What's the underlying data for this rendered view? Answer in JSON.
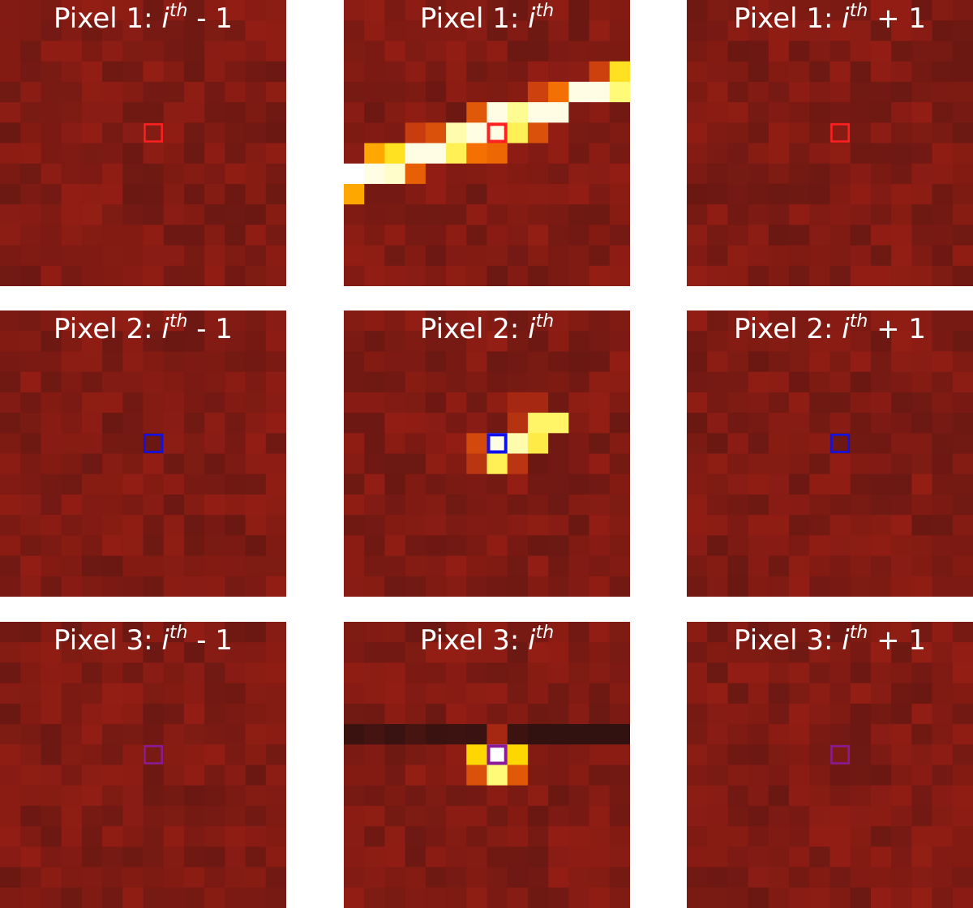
{
  "chart_data": [
    {
      "type": "heatmap",
      "title": "Pixel 1: i^th - 1",
      "title_parts": {
        "prefix": "Pixel 1: ",
        "var": "i",
        "sup": "th",
        "suffix": " - 1"
      },
      "marker_color": "#ff2020",
      "seed": 11,
      "pattern": "quiet",
      "grid": {
        "rows": 14,
        "cols": 14
      },
      "highlight": {
        "row": 6,
        "col": 7
      }
    },
    {
      "type": "heatmap",
      "title": "Pixel 1: i^th",
      "title_parts": {
        "prefix": "Pixel 1: ",
        "var": "i",
        "sup": "th",
        "suffix": ""
      },
      "marker_color": "#ff2020",
      "seed": 12,
      "pattern": "streak",
      "grid": {
        "rows": 14,
        "cols": 14
      },
      "highlight": {
        "row": 6,
        "col": 7
      }
    },
    {
      "type": "heatmap",
      "title": "Pixel 1: i^th + 1",
      "title_parts": {
        "prefix": "Pixel 1: ",
        "var": "i",
        "sup": "th",
        "suffix": " + 1"
      },
      "marker_color": "#ff2020",
      "seed": 13,
      "pattern": "quiet",
      "grid": {
        "rows": 14,
        "cols": 14
      },
      "highlight": {
        "row": 6,
        "col": 7
      }
    },
    {
      "type": "heatmap",
      "title": "Pixel 2: i^th - 1",
      "title_parts": {
        "prefix": "Pixel 2: ",
        "var": "i",
        "sup": "th",
        "suffix": " - 1"
      },
      "marker_color": "#1010ee",
      "seed": 21,
      "pattern": "quiet",
      "grid": {
        "rows": 14,
        "cols": 14
      },
      "highlight": {
        "row": 6,
        "col": 7
      }
    },
    {
      "type": "heatmap",
      "title": "Pixel 2: i^th",
      "title_parts": {
        "prefix": "Pixel 2: ",
        "var": "i",
        "sup": "th",
        "suffix": ""
      },
      "marker_color": "#1010ee",
      "seed": 22,
      "pattern": "short",
      "grid": {
        "rows": 14,
        "cols": 14
      },
      "highlight": {
        "row": 6,
        "col": 7
      }
    },
    {
      "type": "heatmap",
      "title": "Pixel 2: i^th + 1",
      "title_parts": {
        "prefix": "Pixel 2: ",
        "var": "i",
        "sup": "th",
        "suffix": " + 1"
      },
      "marker_color": "#1010ee",
      "seed": 23,
      "pattern": "quiet",
      "grid": {
        "rows": 14,
        "cols": 14
      },
      "highlight": {
        "row": 6,
        "col": 7
      }
    },
    {
      "type": "heatmap",
      "title": "Pixel 3: i^th - 1",
      "title_parts": {
        "prefix": "Pixel 3: ",
        "var": "i",
        "sup": "th",
        "suffix": " - 1"
      },
      "marker_color": "#8a1a9a",
      "seed": 31,
      "pattern": "quiet",
      "grid": {
        "rows": 14,
        "cols": 14
      },
      "highlight": {
        "row": 6,
        "col": 7
      }
    },
    {
      "type": "heatmap",
      "title": "Pixel 3: i^th",
      "title_parts": {
        "prefix": "Pixel 3: ",
        "var": "i",
        "sup": "th",
        "suffix": ""
      },
      "marker_color": "#8a1a9a",
      "seed": 32,
      "pattern": "point",
      "grid": {
        "rows": 14,
        "cols": 14
      },
      "highlight": {
        "row": 6,
        "col": 7
      }
    },
    {
      "type": "heatmap",
      "title": "Pixel 3: i^th + 1",
      "title_parts": {
        "prefix": "Pixel 3: ",
        "var": "i",
        "sup": "th",
        "suffix": " + 1"
      },
      "marker_color": "#8a1a9a",
      "seed": 33,
      "pattern": "quiet",
      "grid": {
        "rows": 14,
        "cols": 14
      },
      "highlight": {
        "row": 6,
        "col": 7
      }
    }
  ]
}
